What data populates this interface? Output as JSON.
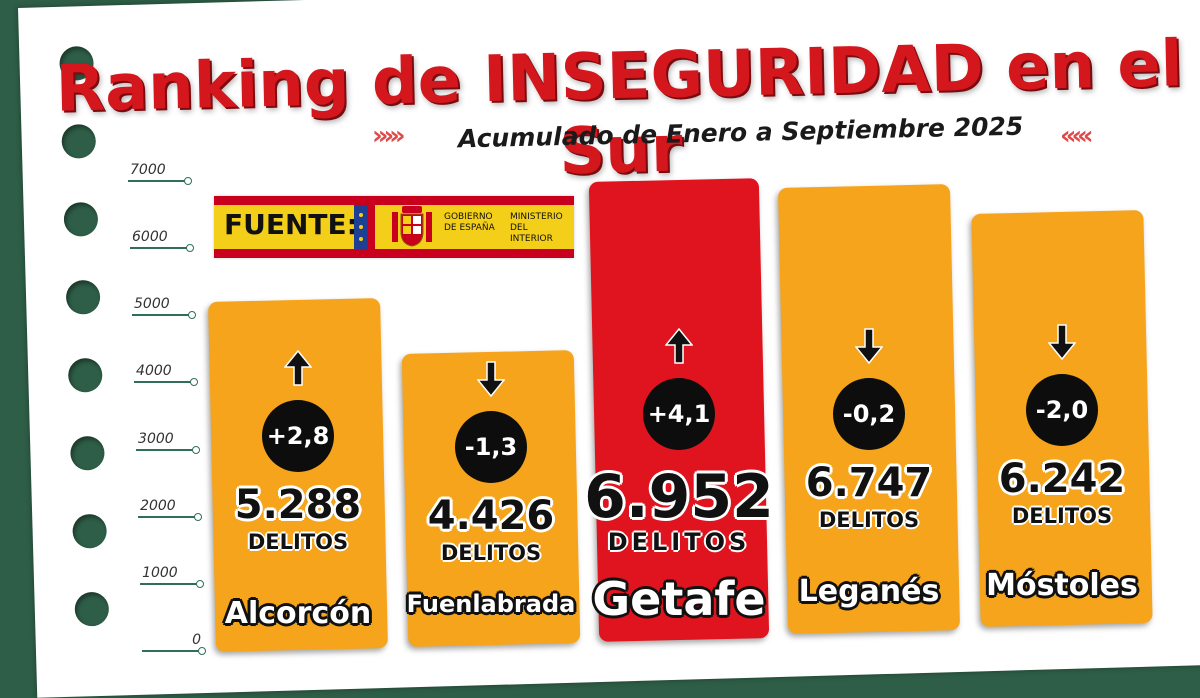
{
  "title": "Ranking de INSEGURIDAD en el Sur",
  "subtitle": "Acumulado de Enero a Septiembre 2025",
  "source": {
    "label": "FUENTE:",
    "gobierno": "GOBIERNO DE ESPAÑA",
    "ministerio": "MINISTERIO DEL INTERIOR"
  },
  "colors": {
    "bar_default": "#f5a41c",
    "bar_highlight": "#e0141e",
    "title_red": "#d4161d",
    "background_green": "#2e5e47"
  },
  "chart_data": {
    "type": "bar",
    "title": "Ranking de INSEGURIDAD en el Sur",
    "subtitle": "Acumulado de Enero a Septiembre 2025",
    "ylim": [
      0,
      7000
    ],
    "y_ticks": [
      "7000",
      "6000",
      "5000",
      "4000",
      "3000",
      "2000",
      "1000",
      "0"
    ],
    "y_tick_values": [
      7000,
      6000,
      5000,
      4000,
      3000,
      2000,
      1000,
      0
    ],
    "unit": "DELITOS",
    "categories": [
      "Alcorcón",
      "Fuenlabrada",
      "Getafe",
      "Leganés",
      "Móstoles"
    ],
    "values": [
      5288,
      4426,
      6952,
      6747,
      6242
    ],
    "value_labels": [
      "5.288",
      "4.426",
      "6.952",
      "6.747",
      "6.242"
    ],
    "changes": [
      "+2,8",
      "-1,3",
      "+4,1",
      "-0,2",
      "-2,0"
    ],
    "trend": [
      "up",
      "down",
      "up",
      "down",
      "down"
    ],
    "highlight": [
      false,
      false,
      true,
      false,
      false
    ]
  }
}
